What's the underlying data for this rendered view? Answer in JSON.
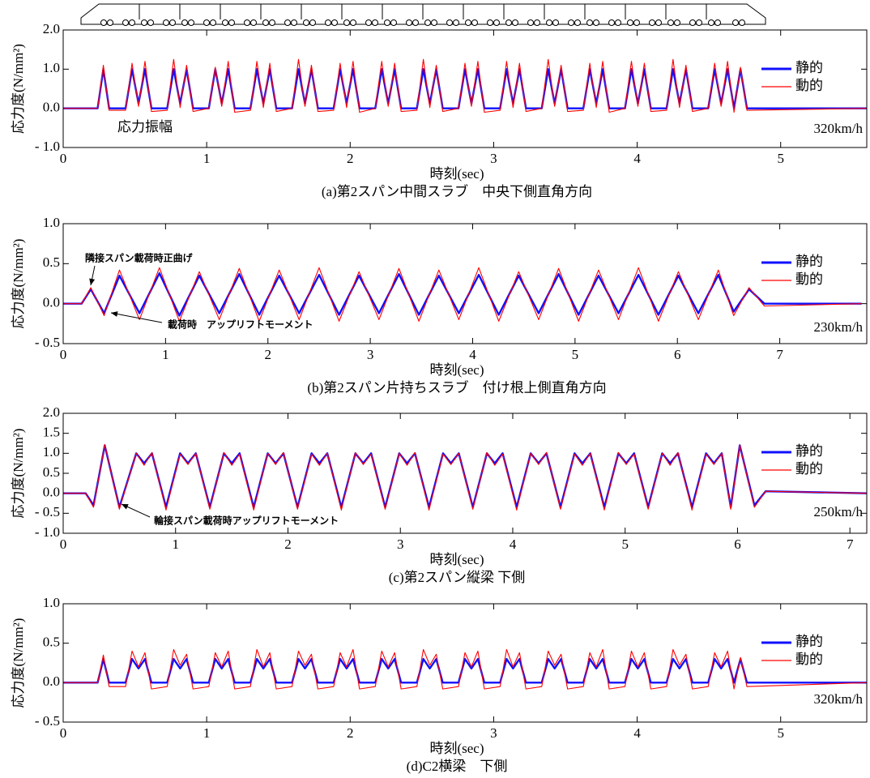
{
  "chart_data": [
    {
      "type": "line",
      "title": "(a)第2スパン中間スラブ　中央下側直角方向",
      "x_label": "時刻(sec)",
      "y_label": "応力度(N/mm²)",
      "annotations": [
        "応力振幅",
        "320km/h"
      ],
      "x": [
        0,
        0.24,
        0.28,
        0.32,
        0.435,
        0.48,
        0.525,
        0.57,
        0.615,
        0.725,
        0.77,
        0.815,
        0.86,
        0.905,
        1.015,
        1.06,
        1.105,
        1.15,
        1.195,
        1.305,
        1.35,
        1.395,
        1.44,
        1.485,
        1.595,
        1.64,
        1.685,
        1.73,
        1.775,
        1.885,
        1.93,
        1.975,
        2.02,
        2.065,
        2.175,
        2.22,
        2.265,
        2.31,
        2.355,
        2.465,
        2.51,
        2.555,
        2.6,
        2.645,
        2.755,
        2.8,
        2.845,
        2.89,
        2.935,
        3.045,
        3.09,
        3.135,
        3.18,
        3.225,
        3.335,
        3.38,
        3.425,
        3.47,
        3.515,
        3.625,
        3.67,
        3.715,
        3.76,
        3.805,
        3.915,
        3.96,
        4.005,
        4.05,
        4.095,
        4.205,
        4.25,
        4.295,
        4.34,
        4.385,
        4.495,
        4.54,
        4.585,
        4.63,
        4.675,
        4.72,
        4.765,
        5.6
      ],
      "series": [
        {
          "name": "静的",
          "color": "#1010ff",
          "values": [
            0,
            0,
            1.0,
            0,
            0,
            1.0,
            0.12,
            1.0,
            0,
            0,
            1.0,
            0.12,
            1.0,
            0,
            0,
            1.0,
            0.12,
            1.0,
            0,
            0,
            1.0,
            0.12,
            1.0,
            0,
            0,
            1.0,
            0.12,
            1.0,
            0,
            0,
            1.0,
            0.12,
            1.0,
            0,
            0,
            1.0,
            0.12,
            1.0,
            0,
            0,
            1.0,
            0.12,
            1.0,
            0,
            0,
            1.0,
            0.12,
            1.0,
            0,
            0,
            1.0,
            0.12,
            1.0,
            0,
            0,
            1.0,
            0.12,
            1.0,
            0,
            0,
            1.0,
            0.12,
            1.0,
            0,
            0,
            1.0,
            0.12,
            1.0,
            0,
            0,
            1.0,
            0.12,
            1.0,
            0,
            0,
            1.0,
            0.12,
            1.0,
            0,
            1.0,
            0,
            0
          ]
        },
        {
          "name": "動的",
          "color": "#ff0000",
          "values": [
            0,
            0,
            1.1,
            -0.05,
            -0.05,
            1.15,
            0.05,
            1.2,
            -0.08,
            -0.05,
            1.25,
            0.02,
            1.1,
            -0.08,
            0,
            1.05,
            0.05,
            1.2,
            -0.1,
            -0.05,
            1.2,
            0.02,
            1.15,
            -0.08,
            0,
            1.25,
            0.05,
            1.1,
            -0.08,
            -0.05,
            1.15,
            0.02,
            1.2,
            -0.1,
            0,
            1.2,
            0.05,
            1.15,
            -0.08,
            -0.05,
            1.25,
            0.02,
            1.1,
            -0.08,
            0,
            1.15,
            0.05,
            1.2,
            -0.1,
            -0.05,
            1.2,
            0.02,
            1.15,
            -0.08,
            0,
            1.25,
            0.05,
            1.1,
            -0.08,
            -0.05,
            1.15,
            0.02,
            1.2,
            -0.1,
            0,
            1.2,
            0.05,
            1.15,
            -0.08,
            -0.05,
            1.25,
            0.02,
            1.1,
            -0.08,
            0,
            1.15,
            0.05,
            1.2,
            -0.1,
            1.05,
            -0.05,
            0
          ]
        }
      ],
      "xlim": [
        0,
        5.6
      ],
      "ylim": [
        -1.0,
        2.0
      ],
      "xticks": [
        0,
        1,
        2,
        3,
        4,
        5
      ],
      "yticks": [
        {
          "value": -1.0,
          "label": "- 1.0"
        },
        {
          "value": 0,
          "label": "0.0"
        },
        {
          "value": 1.0,
          "label": "1.0"
        },
        {
          "value": 2.0,
          "label": "2.0"
        }
      ],
      "grid": false,
      "legend": "upper right"
    },
    {
      "type": "line",
      "title": "(b)第2スパン片持ちスラブ　付け根上側直角方向",
      "x_label": "時刻(sec)",
      "y_label": "応力度(N/mm²)",
      "annotations": [
        "隣接スパン載荷時正曲げ",
        "載荷時　アップリフトモーメント",
        "230km/h"
      ],
      "x": [
        0,
        0.18,
        0.27,
        0.4,
        0.55,
        0.745,
        0.94,
        1.135,
        1.33,
        1.525,
        1.72,
        1.915,
        2.11,
        2.305,
        2.5,
        2.695,
        2.89,
        3.085,
        3.28,
        3.475,
        3.67,
        3.865,
        4.06,
        4.255,
        4.45,
        4.645,
        4.84,
        5.035,
        5.23,
        5.425,
        5.62,
        5.815,
        6.01,
        6.205,
        6.4,
        6.55,
        6.7,
        6.85,
        7.8
      ],
      "series": [
        {
          "name": "静的",
          "color": "#1010ff",
          "values": [
            0,
            0,
            0.18,
            -0.12,
            0.35,
            -0.12,
            0.38,
            -0.15,
            0.35,
            -0.12,
            0.37,
            -0.14,
            0.35,
            -0.12,
            0.36,
            -0.14,
            0.35,
            -0.12,
            0.37,
            -0.14,
            0.35,
            -0.12,
            0.36,
            -0.14,
            0.35,
            -0.12,
            0.37,
            -0.14,
            0.35,
            -0.12,
            0.36,
            -0.14,
            0.35,
            -0.12,
            0.36,
            -0.1,
            0.18,
            0,
            0
          ]
        },
        {
          "name": "動的",
          "color": "#ff0000",
          "values": [
            0,
            0,
            0.2,
            -0.15,
            0.42,
            -0.2,
            0.45,
            -0.22,
            0.4,
            -0.2,
            0.44,
            -0.22,
            0.42,
            -0.2,
            0.45,
            -0.22,
            0.4,
            -0.2,
            0.44,
            -0.22,
            0.42,
            -0.2,
            0.45,
            -0.22,
            0.4,
            -0.2,
            0.44,
            -0.22,
            0.42,
            -0.2,
            0.45,
            -0.22,
            0.4,
            -0.2,
            0.42,
            -0.15,
            0.2,
            -0.03,
            0
          ]
        }
      ],
      "xlim": [
        0,
        7.85
      ],
      "ylim": [
        -0.5,
        1.0
      ],
      "xticks": [
        0,
        1,
        2,
        3,
        4,
        5,
        6,
        7
      ],
      "yticks": [
        {
          "value": -0.5,
          "label": "- 0.5"
        },
        {
          "value": 0,
          "label": "0.0"
        },
        {
          "value": 0.5,
          "label": "0.5"
        },
        {
          "value": 1.0,
          "label": "1.0"
        }
      ],
      "grid": false,
      "legend": "upper right"
    },
    {
      "type": "line",
      "title": "(c)第2スパン縦梁 下側",
      "x_label": "時刻(sec)",
      "y_label": "応力度(N/mm²)",
      "annotations": [
        "輪接スパン載荷時アップリフトモーメント",
        "250km/h"
      ],
      "x": [
        0,
        0.2,
        0.27,
        0.37,
        0.5,
        0.65,
        0.72,
        0.79,
        0.915,
        1.04,
        1.11,
        1.18,
        1.305,
        1.43,
        1.5,
        1.57,
        1.695,
        1.82,
        1.89,
        1.96,
        2.085,
        2.21,
        2.28,
        2.35,
        2.475,
        2.6,
        2.67,
        2.74,
        2.865,
        2.99,
        3.06,
        3.13,
        3.255,
        3.38,
        3.45,
        3.52,
        3.645,
        3.77,
        3.84,
        3.91,
        4.035,
        4.16,
        4.23,
        4.3,
        4.425,
        4.55,
        4.62,
        4.69,
        4.815,
        4.94,
        5.01,
        5.08,
        5.205,
        5.33,
        5.4,
        5.47,
        5.595,
        5.72,
        5.79,
        5.86,
        5.94,
        6.02,
        6.15,
        6.25,
        7.15
      ],
      "series": [
        {
          "name": "静的",
          "color": "#1010ff",
          "values": [
            0,
            0,
            -0.3,
            1.2,
            -0.35,
            1.0,
            0.75,
            1.0,
            -0.35,
            1.0,
            0.75,
            1.0,
            -0.35,
            1.0,
            0.75,
            1.0,
            -0.35,
            1.0,
            0.75,
            1.0,
            -0.35,
            1.0,
            0.75,
            1.0,
            -0.35,
            1.0,
            0.75,
            1.0,
            -0.35,
            1.0,
            0.75,
            1.0,
            -0.35,
            1.0,
            0.75,
            1.0,
            -0.35,
            1.0,
            0.75,
            1.0,
            -0.35,
            1.0,
            0.75,
            1.0,
            -0.35,
            1.0,
            0.75,
            1.0,
            -0.35,
            1.0,
            0.75,
            1.0,
            -0.35,
            1.0,
            0.75,
            1.0,
            -0.35,
            1.0,
            0.75,
            1.0,
            -0.35,
            1.2,
            -0.3,
            0.05,
            0
          ]
        },
        {
          "name": "動的",
          "color": "#ff0000",
          "values": [
            0,
            0,
            -0.35,
            1.22,
            -0.4,
            1.0,
            0.7,
            1.02,
            -0.42,
            0.98,
            0.72,
            1.0,
            -0.4,
            1.02,
            0.7,
            0.98,
            -0.42,
            1.0,
            0.72,
            1.02,
            -0.4,
            0.98,
            0.7,
            1.0,
            -0.42,
            1.02,
            0.72,
            0.98,
            -0.4,
            1.0,
            0.7,
            1.02,
            -0.42,
            0.98,
            0.72,
            1.0,
            -0.4,
            1.02,
            0.7,
            0.98,
            -0.42,
            1.0,
            0.72,
            1.02,
            -0.4,
            0.98,
            0.7,
            1.0,
            -0.42,
            1.02,
            0.72,
            0.98,
            -0.4,
            1.0,
            0.7,
            1.02,
            -0.42,
            0.98,
            0.72,
            1.0,
            -0.4,
            1.2,
            -0.35,
            0.05,
            0
          ]
        }
      ],
      "xlim": [
        0,
        7.15
      ],
      "ylim": [
        -1.0,
        2.0
      ],
      "xticks": [
        0,
        1,
        2,
        3,
        4,
        5,
        6,
        7
      ],
      "yticks": [
        {
          "value": -1.0,
          "label": "- 1.0"
        },
        {
          "value": -0.5,
          "label": "- 0.5"
        },
        {
          "value": 0,
          "label": "0.0"
        },
        {
          "value": 0.5,
          "label": "0.5"
        },
        {
          "value": 1.0,
          "label": "1.0"
        },
        {
          "value": 1.5,
          "label": "1.5"
        },
        {
          "value": 2.0,
          "label": "2.0"
        }
      ],
      "grid": false,
      "legend": "upper right"
    },
    {
      "type": "line",
      "title": "(d)C2横梁　下側",
      "x_label": "時刻(sec)",
      "y_label": "応力度(N/mm²)",
      "annotations": [
        "320km/h"
      ],
      "x": [
        0,
        0.24,
        0.28,
        0.32,
        0.435,
        0.48,
        0.525,
        0.57,
        0.615,
        0.725,
        0.77,
        0.815,
        0.86,
        0.905,
        1.015,
        1.06,
        1.105,
        1.15,
        1.195,
        1.305,
        1.35,
        1.395,
        1.44,
        1.485,
        1.595,
        1.64,
        1.685,
        1.73,
        1.775,
        1.885,
        1.93,
        1.975,
        2.02,
        2.065,
        2.175,
        2.22,
        2.265,
        2.31,
        2.355,
        2.465,
        2.51,
        2.555,
        2.6,
        2.645,
        2.755,
        2.8,
        2.845,
        2.89,
        2.935,
        3.045,
        3.09,
        3.135,
        3.18,
        3.225,
        3.335,
        3.38,
        3.425,
        3.47,
        3.515,
        3.625,
        3.67,
        3.715,
        3.76,
        3.805,
        3.915,
        3.96,
        4.005,
        4.05,
        4.095,
        4.205,
        4.25,
        4.295,
        4.34,
        4.385,
        4.495,
        4.54,
        4.585,
        4.63,
        4.675,
        4.72,
        4.765,
        5.6
      ],
      "series": [
        {
          "name": "静的",
          "color": "#1010ff",
          "values": [
            0,
            0,
            0.3,
            0,
            0,
            0.3,
            0.18,
            0.3,
            0,
            0,
            0.3,
            0.18,
            0.3,
            0,
            0,
            0.3,
            0.18,
            0.3,
            0,
            0,
            0.3,
            0.18,
            0.3,
            0,
            0,
            0.3,
            0.18,
            0.3,
            0,
            0,
            0.3,
            0.18,
            0.3,
            0,
            0,
            0.3,
            0.18,
            0.3,
            0,
            0,
            0.3,
            0.18,
            0.3,
            0,
            0,
            0.3,
            0.18,
            0.3,
            0,
            0,
            0.3,
            0.18,
            0.3,
            0,
            0,
            0.3,
            0.18,
            0.3,
            0,
            0,
            0.3,
            0.18,
            0.3,
            0,
            0,
            0.3,
            0.18,
            0.3,
            0,
            0,
            0.3,
            0.18,
            0.3,
            0,
            0,
            0.3,
            0.18,
            0.3,
            0,
            0.3,
            0,
            0
          ]
        },
        {
          "name": "動的",
          "color": "#ff0000",
          "values": [
            0,
            0,
            0.35,
            -0.05,
            -0.05,
            0.4,
            0.2,
            0.38,
            -0.08,
            -0.05,
            0.42,
            0.22,
            0.36,
            -0.08,
            -0.05,
            0.38,
            0.2,
            0.4,
            -0.08,
            -0.05,
            0.42,
            0.2,
            0.38,
            -0.08,
            -0.05,
            0.4,
            0.22,
            0.36,
            -0.08,
            -0.05,
            0.38,
            0.2,
            0.42,
            -0.08,
            -0.05,
            0.4,
            0.2,
            0.38,
            -0.08,
            -0.05,
            0.42,
            0.22,
            0.36,
            -0.08,
            -0.05,
            0.38,
            0.2,
            0.4,
            -0.08,
            -0.05,
            0.42,
            0.2,
            0.38,
            -0.08,
            -0.05,
            0.4,
            0.22,
            0.36,
            -0.08,
            -0.05,
            0.38,
            0.2,
            0.42,
            -0.08,
            -0.05,
            0.4,
            0.2,
            0.38,
            -0.08,
            -0.05,
            0.42,
            0.22,
            0.36,
            -0.08,
            -0.05,
            0.38,
            0.2,
            0.4,
            -0.08,
            0.32,
            -0.05,
            0
          ]
        }
      ],
      "xlim": [
        0,
        5.6
      ],
      "ylim": [
        -0.5,
        1.0
      ],
      "xticks": [
        0,
        1,
        2,
        3,
        4,
        5
      ],
      "yticks": [
        {
          "value": -0.5,
          "label": "- 0.5"
        },
        {
          "value": 0,
          "label": "0.0"
        },
        {
          "value": 0.5,
          "label": "0.5"
        },
        {
          "value": 1.0,
          "label": "1.0"
        }
      ],
      "grid": false,
      "legend": "upper right"
    }
  ]
}
